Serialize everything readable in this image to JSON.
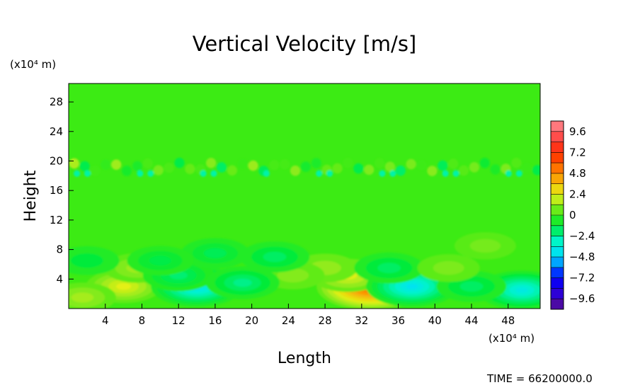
{
  "chart_data": {
    "type": "heatmap",
    "title": "Vertical Velocity [m/s]",
    "xlabel": "Length",
    "ylabel": "Height",
    "x_unit_label": "(x10⁴ m)",
    "y_unit_label": "(x10⁴ m)",
    "time_label": "TIME = 66200000.0",
    "xlim": [
      0,
      51.5
    ],
    "ylim": [
      0,
      30.5
    ],
    "x_ticks": [
      {
        "value": 4,
        "label": "4"
      },
      {
        "value": 8,
        "label": "8"
      },
      {
        "value": 12,
        "label": "12"
      },
      {
        "value": 16,
        "label": "16"
      },
      {
        "value": 20,
        "label": "20"
      },
      {
        "value": 24,
        "label": "24"
      },
      {
        "value": 28,
        "label": "28"
      },
      {
        "value": 32,
        "label": "32"
      },
      {
        "value": 36,
        "label": "36"
      },
      {
        "value": 40,
        "label": "40"
      },
      {
        "value": 44,
        "label": "44"
      },
      {
        "value": 48,
        "label": "48"
      }
    ],
    "y_ticks": [
      {
        "value": 4,
        "label": "4"
      },
      {
        "value": 8,
        "label": "8"
      },
      {
        "value": 12,
        "label": "12"
      },
      {
        "value": 16,
        "label": "16"
      },
      {
        "value": 20,
        "label": "20"
      },
      {
        "value": 24,
        "label": "24"
      },
      {
        "value": 28,
        "label": "28"
      }
    ],
    "colorbar": {
      "min": -10.8,
      "max": 10.8,
      "step": 1.2,
      "tick_labels": [
        {
          "value": 9.6,
          "label": "9.6"
        },
        {
          "value": 7.2,
          "label": "7.2"
        },
        {
          "value": 4.8,
          "label": "4.8"
        },
        {
          "value": 2.4,
          "label": "2.4"
        },
        {
          "value": 0,
          "label": "0"
        },
        {
          "value": -2.4,
          "label": "−2.4"
        },
        {
          "value": -4.8,
          "label": "−4.8"
        },
        {
          "value": -7.2,
          "label": "−7.2"
        },
        {
          "value": -9.6,
          "label": "−9.6"
        }
      ]
    },
    "field_background": 0,
    "features": [
      {
        "x": 33,
        "y": 3,
        "value": 6.5
      },
      {
        "x": 30.5,
        "y": 4.5,
        "value": 2.4
      },
      {
        "x": 28,
        "y": 5.5,
        "value": 1.2
      },
      {
        "x": 6,
        "y": 3,
        "value": 2.5
      },
      {
        "x": 7.5,
        "y": 5.5,
        "value": 1.4
      },
      {
        "x": 1.5,
        "y": 1.5,
        "value": 1.5
      },
      {
        "x": 24.5,
        "y": 4.5,
        "value": 1.0
      },
      {
        "x": 14,
        "y": 3,
        "value": -4.5
      },
      {
        "x": 12,
        "y": 4.5,
        "value": -2.0
      },
      {
        "x": 37.5,
        "y": 3,
        "value": -4.5
      },
      {
        "x": 35,
        "y": 5.5,
        "value": -1.8
      },
      {
        "x": 49.5,
        "y": 2.5,
        "value": -4.0
      },
      {
        "x": 19,
        "y": 3.5,
        "value": -2.3
      },
      {
        "x": 22.5,
        "y": 7,
        "value": -1.8
      },
      {
        "x": 16,
        "y": 7.5,
        "value": -1.6
      },
      {
        "x": 10,
        "y": 6.5,
        "value": -1.4
      },
      {
        "x": 44,
        "y": 3,
        "value": -1.8
      },
      {
        "x": 45.5,
        "y": 8.5,
        "value": 0.8
      },
      {
        "x": 41.5,
        "y": 5.5,
        "value": 0.9
      },
      {
        "x": 2,
        "y": 6.5,
        "value": -1.2
      }
    ],
    "band": {
      "y": 19.2,
      "amplitude": 1.6
    }
  }
}
